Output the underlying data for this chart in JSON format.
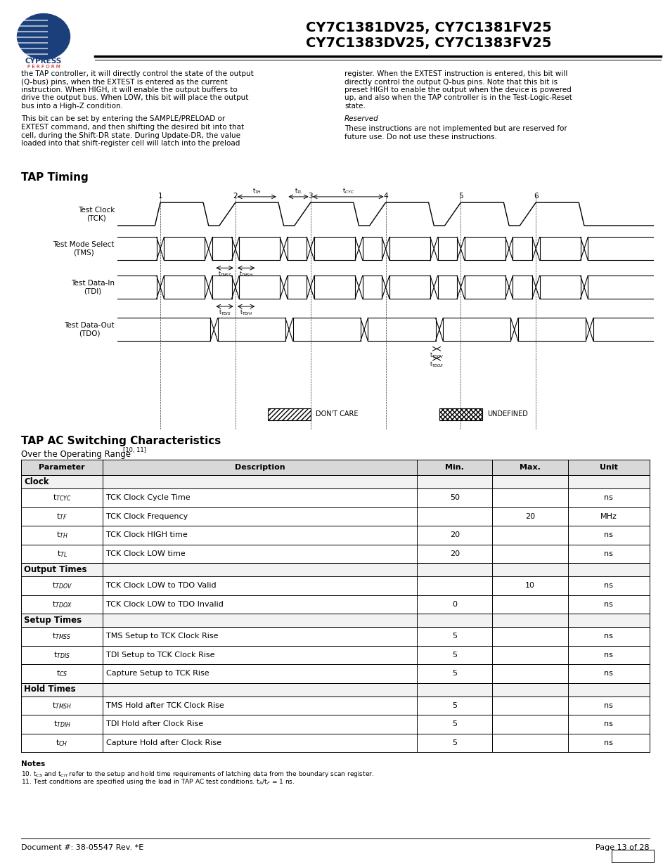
{
  "title_line1": "CY7C1381DV25, CY7C1381FV25",
  "title_line2": "CY7C1383DV25, CY7C1383FV25",
  "para1_left": [
    "the TAP controller, it will directly control the state of the output",
    "(Q-bus) pins, when the EXTEST is entered as the current",
    "instruction. When HIGH, it will enable the output buffers to",
    "drive the output bus. When LOW, this bit will place the output",
    "bus into a High-Z condition."
  ],
  "para2_left": [
    "This bit can be set by entering the SAMPLE/PRELOAD or",
    "EXTEST command, and then shifting the desired bit into that",
    "cell, during the Shift-DR state. During Update-DR, the value",
    "loaded into that shift-register cell will latch into the preload"
  ],
  "para1_right": [
    "register. When the EXTEST instruction is entered, this bit will",
    "directly control the output Q-bus pins. Note that this bit is",
    "preset HIGH to enable the output when the device is powered",
    "up, and also when the TAP controller is in the Test-Logic-Reset",
    "state."
  ],
  "reserved_heading": "Reserved",
  "para2_right": [
    "These instructions are not implemented but are reserved for",
    "future use. Do not use these instructions."
  ],
  "tap_timing_heading": "TAP Timing",
  "tap_ac_heading": "TAP AC Switching Characteristics",
  "tap_ac_subheading": "Over the Operating Range",
  "tap_ac_superscript": "[10, 11]",
  "table_headers": [
    "Parameter",
    "Description",
    "Min.",
    "Max.",
    "Unit"
  ],
  "col_widths_pct": [
    13,
    50,
    12,
    12,
    13
  ],
  "table_sections": [
    {
      "section_name": "Clock",
      "rows": [
        {
          "param": "t$_{TCYC}$",
          "desc": "TCK Clock Cycle Time",
          "min": "50",
          "max": "",
          "unit": "ns"
        },
        {
          "param": "t$_{TF}$",
          "desc": "TCK Clock Frequency",
          "min": "",
          "max": "20",
          "unit": "MHz"
        },
        {
          "param": "t$_{TH}$",
          "desc": "TCK Clock HIGH time",
          "min": "20",
          "max": "",
          "unit": "ns"
        },
        {
          "param": "t$_{TL}$",
          "desc": "TCK Clock LOW time",
          "min": "20",
          "max": "",
          "unit": "ns"
        }
      ]
    },
    {
      "section_name": "Output Times",
      "rows": [
        {
          "param": "t$_{TDOV}$",
          "desc": "TCK Clock LOW to TDO Valid",
          "min": "",
          "max": "10",
          "unit": "ns"
        },
        {
          "param": "t$_{TDOX}$",
          "desc": "TCK Clock LOW to TDO Invalid",
          "min": "0",
          "max": "",
          "unit": "ns"
        }
      ]
    },
    {
      "section_name": "Setup Times",
      "rows": [
        {
          "param": "t$_{TMSS}$",
          "desc": "TMS Setup to TCK Clock Rise",
          "min": "5",
          "max": "",
          "unit": "ns"
        },
        {
          "param": "t$_{TDIS}$",
          "desc": "TDI Setup to TCK Clock Rise",
          "min": "5",
          "max": "",
          "unit": "ns"
        },
        {
          "param": "t$_{CS}$",
          "desc": "Capture Setup to TCK Rise",
          "min": "5",
          "max": "",
          "unit": "ns"
        }
      ]
    },
    {
      "section_name": "Hold Times",
      "rows": [
        {
          "param": "t$_{TMSH}$",
          "desc": "TMS Hold after TCK Clock Rise",
          "min": "5",
          "max": "",
          "unit": "ns"
        },
        {
          "param": "t$_{TDIH}$",
          "desc": "TDI Hold after Clock Rise",
          "min": "5",
          "max": "",
          "unit": "ns"
        },
        {
          "param": "t$_{CH}$",
          "desc": "Capture Hold after Clock Rise",
          "min": "5",
          "max": "",
          "unit": "ns"
        }
      ]
    }
  ],
  "notes_heading": "Notes",
  "note10": "10. t$_{CS}$ and t$_{CH}$ refer to the setup and hold time requirements of latching data from the boundary scan register.",
  "note11": "11. Test conditions are specified using the load in TAP AC test conditions. t$_{R}$/t$_{F}$ = 1 ns.",
  "footer_left": "Document #: 38-05547 Rev. *E",
  "footer_right": "Page 13 of 28",
  "bg_color": "#ffffff",
  "text_color": "#000000"
}
